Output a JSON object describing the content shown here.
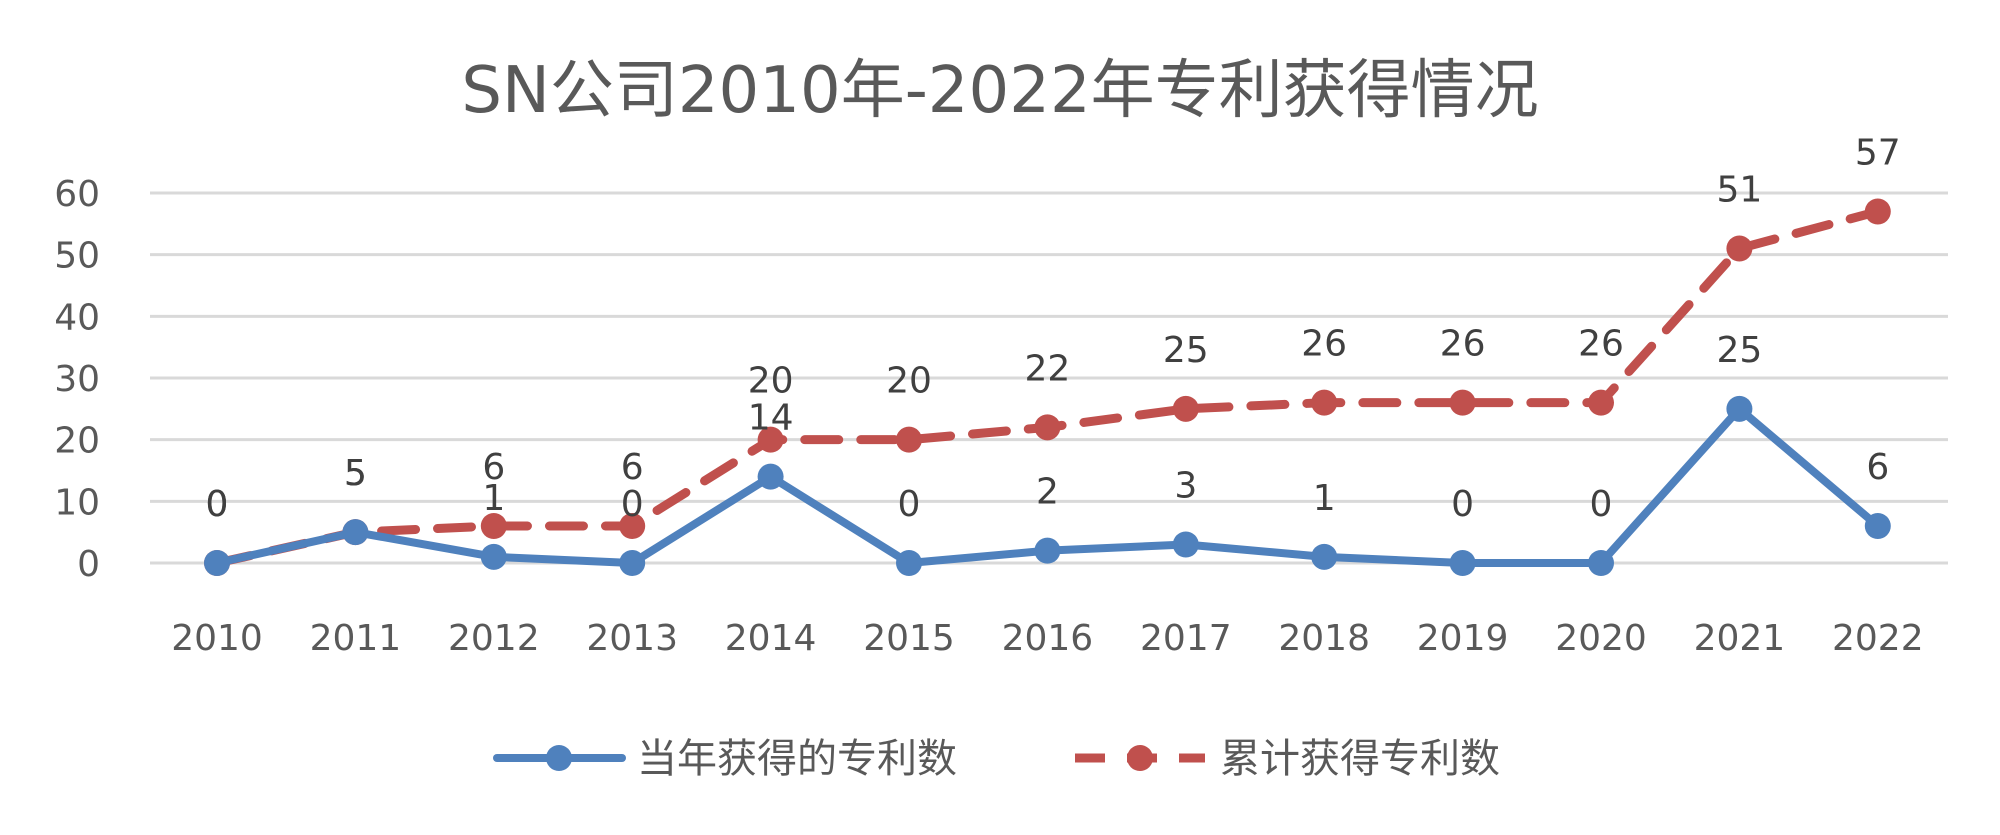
{
  "chart_data": {
    "type": "line",
    "title": "SN公司2010年-2022年专利获得情况",
    "categories": [
      "2010",
      "2011",
      "2012",
      "2013",
      "2014",
      "2015",
      "2016",
      "2017",
      "2018",
      "2019",
      "2020",
      "2021",
      "2022"
    ],
    "ylim": [
      0,
      60
    ],
    "yticks": [
      0,
      10,
      20,
      30,
      40,
      50,
      60
    ],
    "grid": true,
    "legend_position": "bottom",
    "series": [
      {
        "name": "当年获得的专利数",
        "values": [
          0,
          5,
          1,
          0,
          14,
          0,
          2,
          3,
          1,
          0,
          0,
          25,
          6
        ],
        "color": "#4f81bd",
        "line_style": "solid"
      },
      {
        "name": "累计获得专利数",
        "values": [
          0,
          5,
          6,
          6,
          20,
          20,
          22,
          25,
          26,
          26,
          26,
          51,
          57
        ],
        "color": "#c0504d",
        "line_style": "dashed"
      }
    ]
  }
}
